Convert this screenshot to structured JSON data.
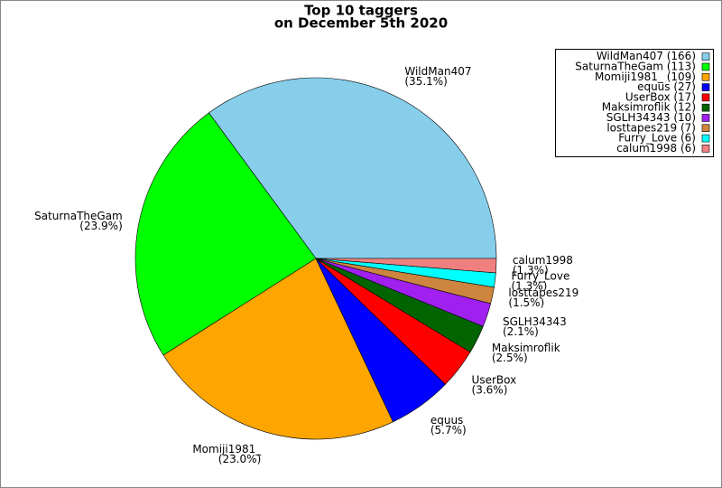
{
  "chart_data": {
    "type": "pie",
    "title": "Top 10 taggers",
    "subtitle": "on December 5th 2020",
    "categories": [
      "WildMan407",
      "SaturnaTheGam",
      "Momiji1981_",
      "equus",
      "UserBox",
      "Maksimroflik",
      "SGLH34343",
      "losttapes219",
      "Furry_Love",
      "calum1998"
    ],
    "values": [
      166,
      113,
      109,
      27,
      17,
      12,
      10,
      7,
      6,
      6
    ],
    "percent_labels": [
      "(35.1%)",
      "(23.9%)",
      "(23.0%)",
      "(5.7%)",
      "(3.6%)",
      "(2.5%)",
      "(2.1%)",
      "(1.5%)",
      "(1.3%)",
      "(1.3%)"
    ],
    "legend_labels": [
      "WildMan407 (166)",
      "SaturnaTheGam (113)",
      "Momiji1981_ (109)",
      "equus (27)",
      "UserBox (17)",
      "Maksimroflik (12)",
      "SGLH34343 (10)",
      "losttapes219 (7)",
      "Furry_Love (6)",
      "calum1998 (6)"
    ],
    "colors": [
      "#87ceeb",
      "#00ff00",
      "#ffa500",
      "#0000ff",
      "#ff0000",
      "#006400",
      "#a020f0",
      "#cd853f",
      "#00ffff",
      "#f08080"
    ],
    "legend": "upper right"
  }
}
